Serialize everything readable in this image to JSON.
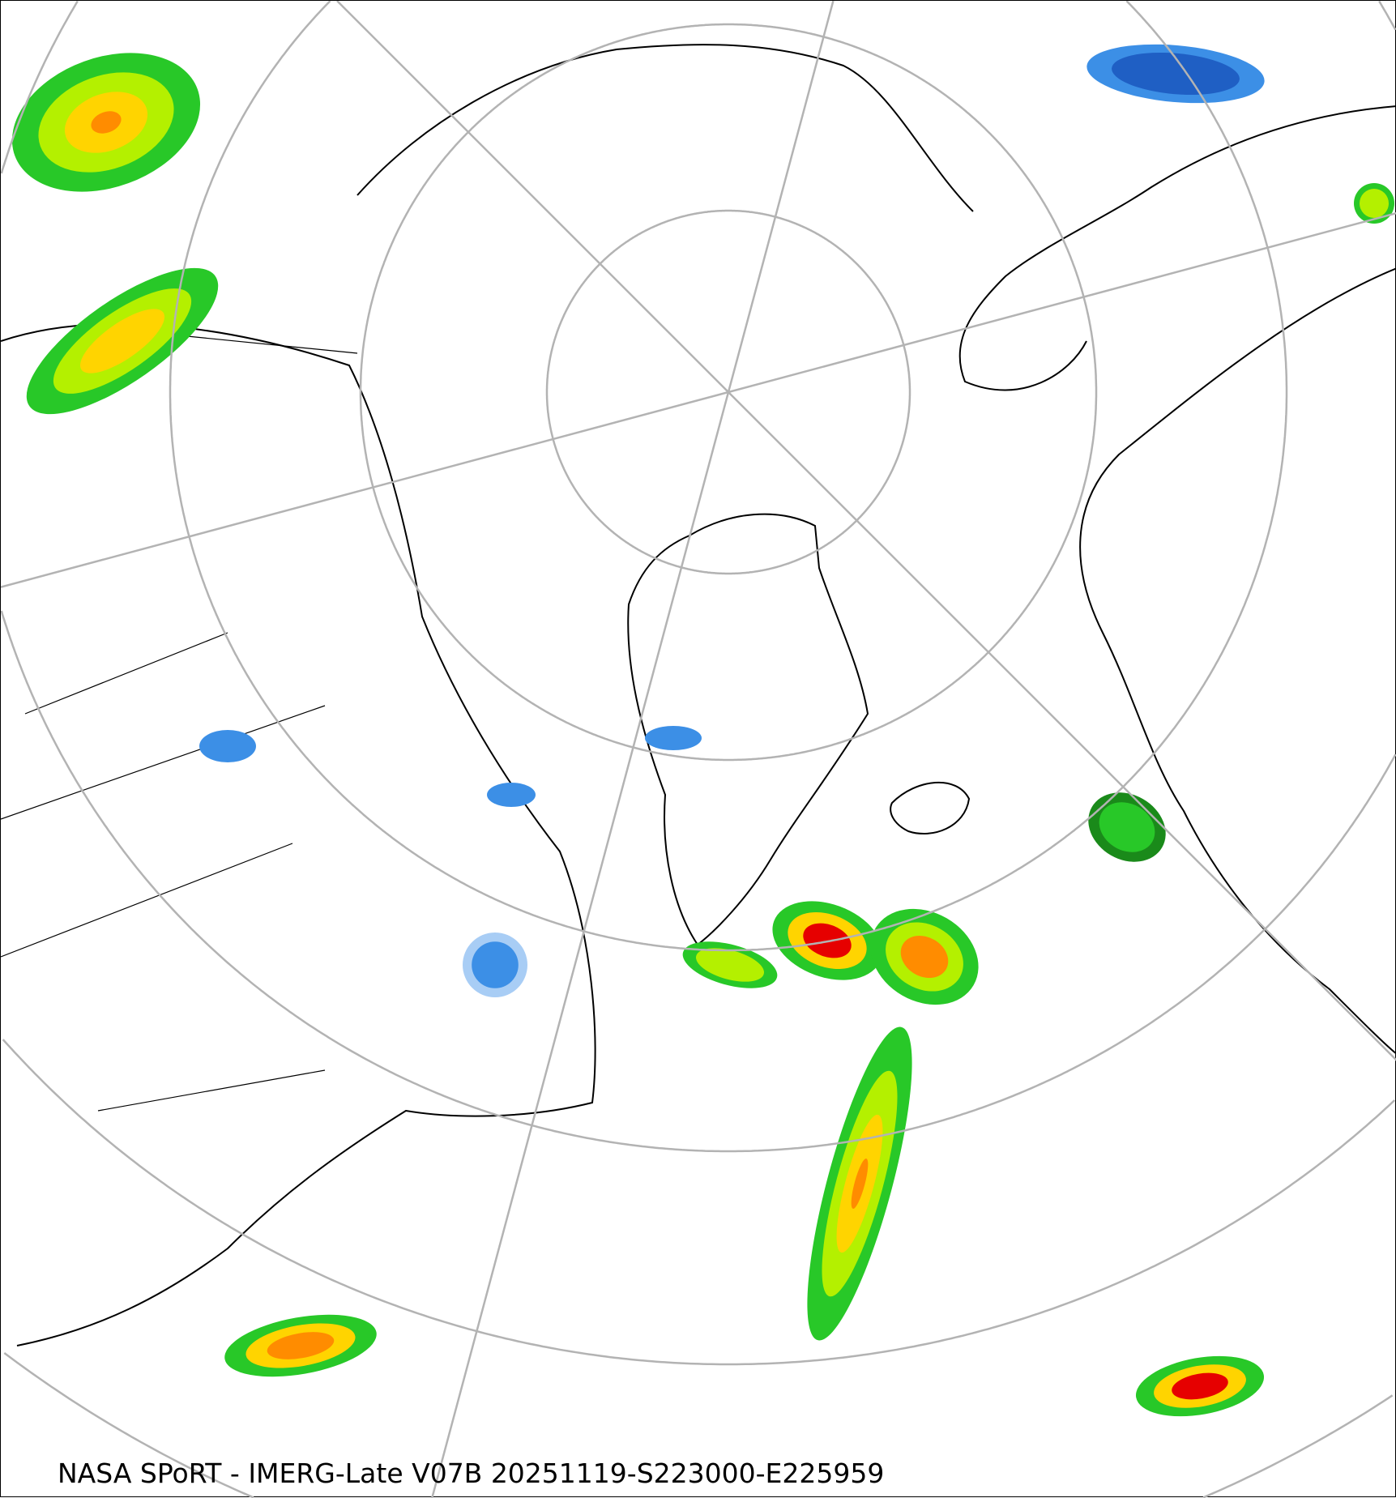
{
  "caption": "NASA SPoRT - IMERG-Late V07B 20251119-S223000-E225959",
  "map": {
    "projection": "north polar stereographic",
    "graticule_color": "#b3b3b3",
    "coastline_color": "#000000",
    "precip_colors": {
      "light_snow": "#a8cdf5",
      "snow": "#3c8fe6",
      "heavy_snow": "#1f5fc4",
      "light_rain": "#1a8a1a",
      "rain": "#28c828",
      "moderate_rain": "#b4f000",
      "heavy_rain": "#ffd400",
      "very_heavy_rain": "#ff8c00",
      "extreme_rain": "#e60000"
    }
  }
}
